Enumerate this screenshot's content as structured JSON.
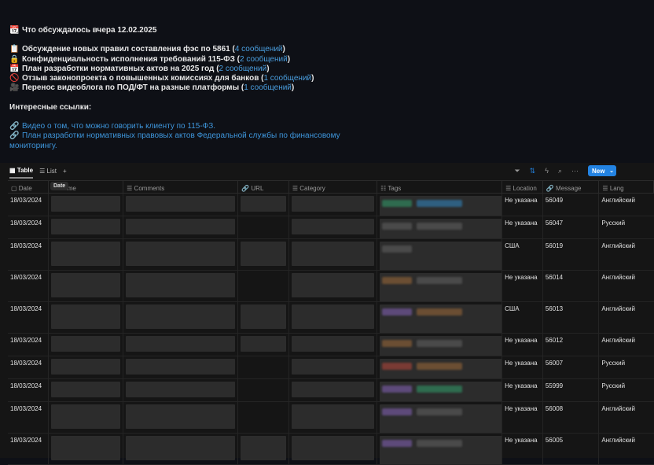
{
  "message": {
    "title_icon": "calendar-icon",
    "title": "Что обсуждалось вчера 12.02.2025",
    "topics": [
      {
        "icon": "clipboard-icon",
        "glyph": "📋",
        "text": "Обсуждение новых правил составления фэс по 5861 (",
        "count": "4 сообщений",
        ")": ")"
      },
      {
        "icon": "lock-icon",
        "glyph": "🔒",
        "text": "Конфиденциальность исполнения требований 115-ФЗ (",
        "count": "2 сообщений"
      },
      {
        "icon": "calendar-icon",
        "glyph": "📅",
        "text": "План разработки нормативных актов на 2025 год (",
        "count": "2 сообщений"
      },
      {
        "icon": "prohibited-icon",
        "glyph": "🚫",
        "text": "Отзыв законопроекта о повышенных комиссиях для банков (",
        "count": "1 сообщений"
      },
      {
        "icon": "video-camera-icon",
        "glyph": "🎥",
        "text": "Перенос видеоблога по ПОД/ФТ на разные платформы (",
        "count": "1 сообщений"
      }
    ],
    "links_heading": "Интересные ссылки:",
    "links": [
      {
        "text": "Видео о том, что можно говорить клиенту по 115-ФЗ."
      },
      {
        "text": "План разработки нормативных правовых актов Федеральной службы по финансовому мониторингу."
      }
    ]
  },
  "toolbar": {
    "views": [
      "Table",
      "List"
    ],
    "add": "+",
    "new_label": "New",
    "accent": "#2383e2"
  },
  "table": {
    "tooltip": "Date",
    "columns": [
      "Date",
      "me",
      "Comments",
      "URL",
      "Category",
      "Tags",
      "Location",
      "Message",
      "Lang"
    ],
    "rows": [
      {
        "date": "18/03/2024",
        "url": true,
        "tags": [
          "#2f6b4f",
          "#2f5f80"
        ],
        "location": "Не указана",
        "message": "56049",
        "lang": "Английский",
        "tall": false
      },
      {
        "date": "18/03/2024",
        "url": false,
        "tags": [
          "#4a4a4a",
          "#4a4a4a"
        ],
        "location": "Не указана",
        "message": "56047",
        "lang": "Русский",
        "tall": false
      },
      {
        "date": "18/03/2024",
        "url": true,
        "tags": [
          "#4a4a4a"
        ],
        "location": "США",
        "message": "56019",
        "lang": "Английский",
        "tall": true
      },
      {
        "date": "18/03/2024",
        "url": false,
        "tags": [
          "#6b4e33",
          "#4a4a4a"
        ],
        "location": "Не указана",
        "message": "56014",
        "lang": "Английский",
        "tall": true
      },
      {
        "date": "18/03/2024",
        "url": true,
        "tags": [
          "#5d4a7a",
          "#6b4e33"
        ],
        "location": "США",
        "message": "56013",
        "lang": "Английский",
        "tall": true
      },
      {
        "date": "18/03/2024",
        "url": true,
        "tags": [
          "#6b4e33",
          "#4a4a4a"
        ],
        "location": "Не указана",
        "message": "56012",
        "lang": "Английский",
        "tall": false
      },
      {
        "date": "18/03/2024",
        "url": false,
        "tags": [
          "#7a3b34",
          "#6b4e33"
        ],
        "location": "Не указана",
        "message": "56007",
        "lang": "Русский",
        "tall": false
      },
      {
        "date": "18/03/2024",
        "url": false,
        "tags": [
          "#5d4a7a",
          "#2f6b4f"
        ],
        "location": "Не указана",
        "message": "55999",
        "lang": "Русский",
        "tall": false
      },
      {
        "date": "18/03/2024",
        "url": false,
        "tags": [
          "#5d4a7a",
          "#4a4a4a"
        ],
        "location": "Не указана",
        "message": "56008",
        "lang": "Английский",
        "tall": true
      },
      {
        "date": "18/03/2024",
        "url": true,
        "tags": [
          "#5d4a7a",
          "#4a4a4a"
        ],
        "location": "Не указана",
        "message": "56005",
        "lang": "Английский",
        "tall": true
      }
    ]
  }
}
